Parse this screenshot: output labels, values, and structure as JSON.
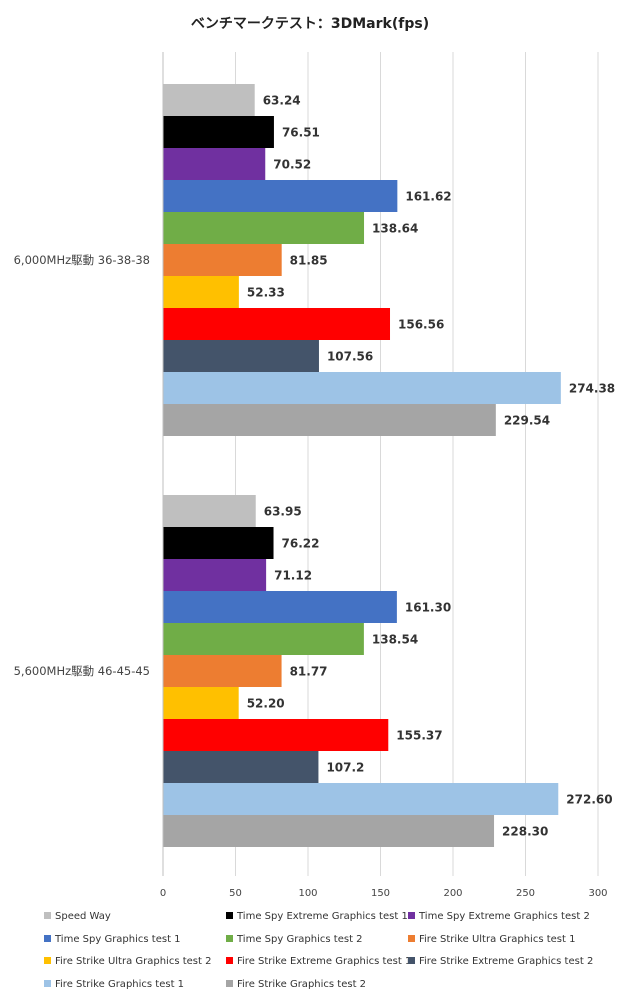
{
  "chart_data": {
    "type": "bar",
    "orientation": "horizontal",
    "title": "ベンチマークテスト：3DMark(fps)",
    "xlabel": "",
    "ylabel": "",
    "xlim": [
      0,
      300
    ],
    "xticks": [
      0,
      50,
      100,
      150,
      200,
      250,
      300
    ],
    "grid": true,
    "legend_position": "bottom",
    "categories": [
      "6,000MHz駆動 36-38-38",
      "5,600MHz駆動 46-45-45"
    ],
    "series": [
      {
        "name": "Speed Way",
        "color": "#bfbfbf",
        "values": [
          63.24,
          63.95
        ],
        "labels": [
          "63.24",
          "63.95"
        ]
      },
      {
        "name": "Time Spy Extreme Graphics test 1",
        "color": "#000000",
        "values": [
          76.51,
          76.22
        ],
        "labels": [
          "76.51",
          "76.22"
        ]
      },
      {
        "name": "Time Spy Extreme Graphics test 2",
        "color": "#7030a0",
        "values": [
          70.52,
          71.12
        ],
        "labels": [
          "70.52",
          "71.12"
        ]
      },
      {
        "name": "Time Spy Graphics test 1",
        "color": "#4472c4",
        "values": [
          161.62,
          161.3
        ],
        "labels": [
          "161.62",
          "161.30"
        ]
      },
      {
        "name": "Time Spy Graphics test 2",
        "color": "#70ad47",
        "values": [
          138.64,
          138.54
        ],
        "labels": [
          "138.64",
          "138.54"
        ]
      },
      {
        "name": "Fire Strike Ultra Graphics test 1",
        "color": "#ed7d31",
        "values": [
          81.85,
          81.77
        ],
        "labels": [
          "81.85",
          "81.77"
        ]
      },
      {
        "name": "Fire Strike Ultra Graphics test 2",
        "color": "#ffc000",
        "values": [
          52.33,
          52.2
        ],
        "labels": [
          "52.33",
          "52.20"
        ]
      },
      {
        "name": "Fire Strike Extreme Graphics test 1",
        "color": "#ff0000",
        "values": [
          156.56,
          155.37
        ],
        "labels": [
          "156.56",
          "155.37"
        ]
      },
      {
        "name": "Fire Strike Extreme Graphics test 2",
        "color": "#44546a",
        "values": [
          107.56,
          107.2
        ],
        "labels": [
          "107.56",
          "107.2"
        ]
      },
      {
        "name": "Fire Strike Graphics test 1",
        "color": "#9dc3e6",
        "values": [
          274.38,
          272.6
        ],
        "labels": [
          "274.38",
          "272.60"
        ]
      },
      {
        "name": "Fire Strike Graphics test 2",
        "color": "#a5a5a5",
        "values": [
          229.54,
          228.3
        ],
        "labels": [
          "229.54",
          "228.30"
        ]
      }
    ]
  }
}
